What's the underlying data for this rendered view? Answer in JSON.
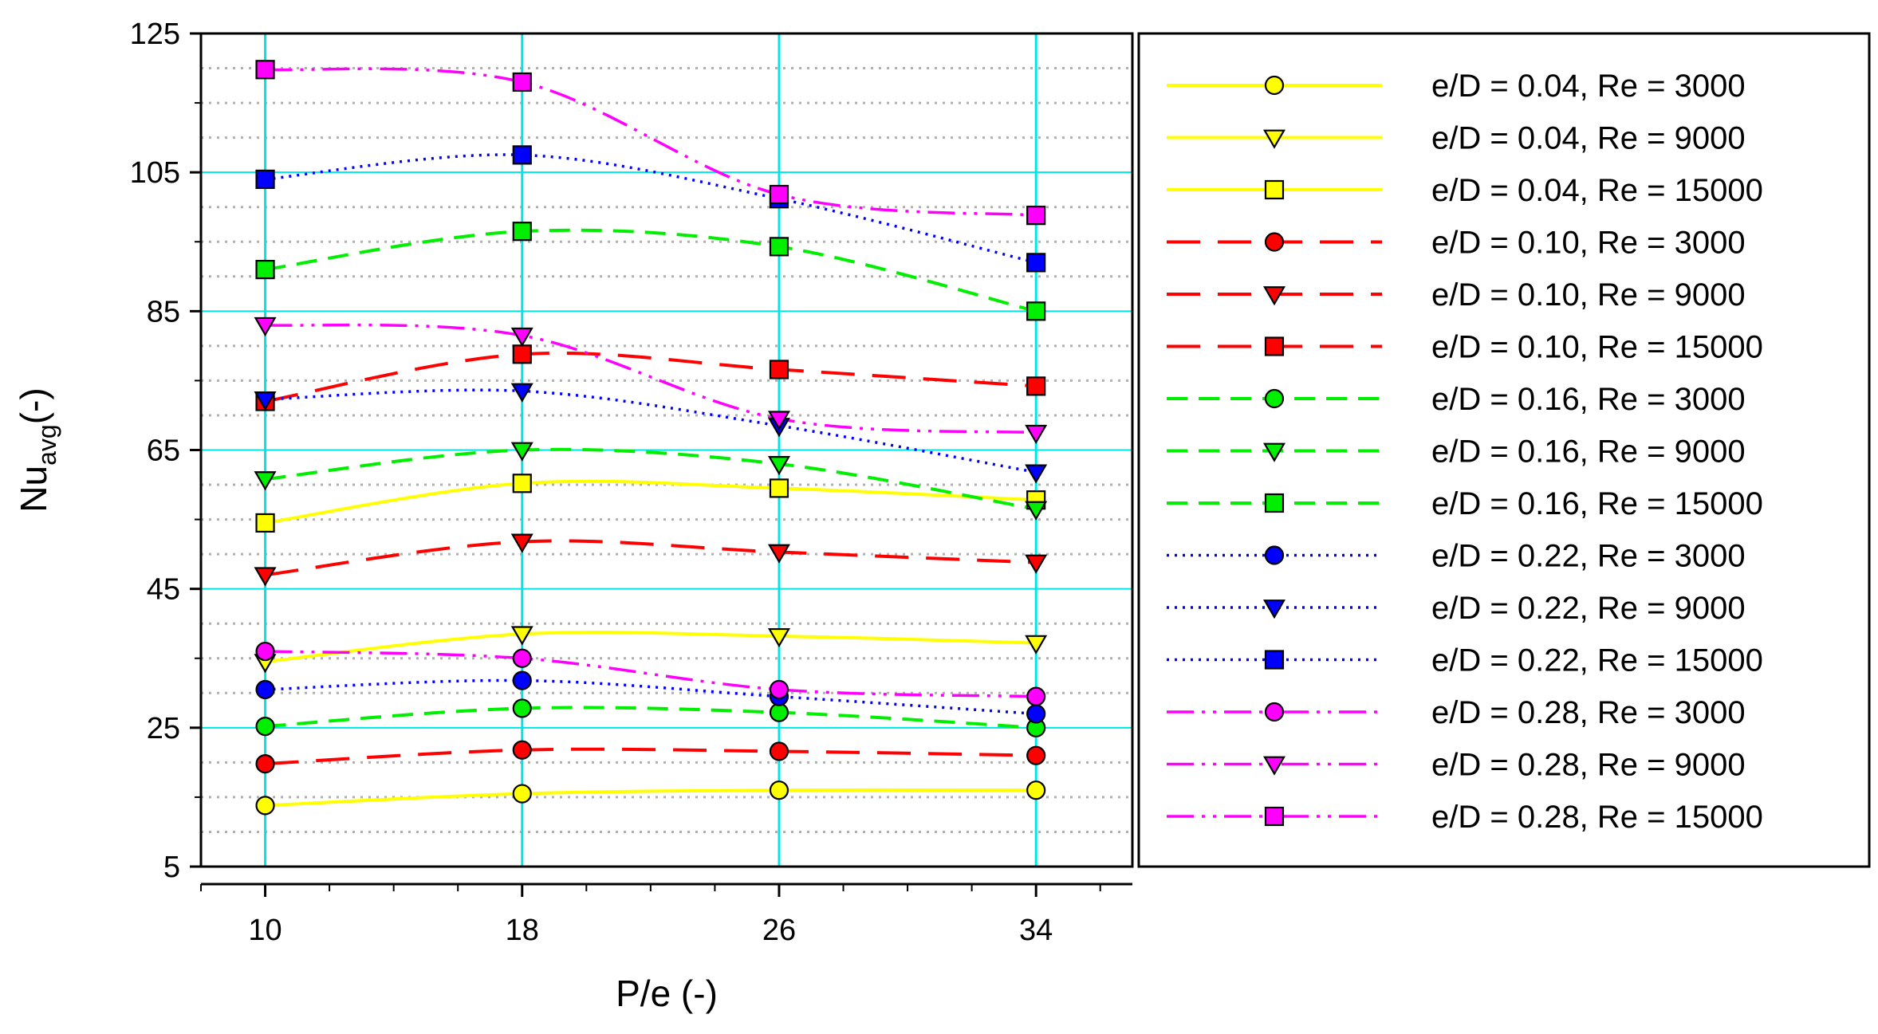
{
  "chart_data": {
    "type": "line",
    "title": "",
    "xlabel": "P/e (-)",
    "ylabel_main": "Nu",
    "ylabel_sub": "avg",
    "ylabel_suffix": "(-)",
    "x": [
      10,
      18,
      26,
      34
    ],
    "xticks": [
      "10",
      "18",
      "26",
      "34"
    ],
    "xlim": [
      8,
      37
    ],
    "yticks": [
      "5",
      "25",
      "45",
      "65",
      "85",
      "105",
      "125"
    ],
    "ylim": [
      5,
      125
    ],
    "grid": true,
    "legend_position": "right",
    "colors": {
      "yellow": "#ffff00",
      "red": "#ff0000",
      "green": "#00ee00",
      "blue": "#0000ff",
      "magenta": "#ff00ff",
      "grid_major": "#00e5e5",
      "grid_minor": "#b0b0b0"
    },
    "series": [
      {
        "name": "e/D = 0.04, Re = 3000",
        "values": [
          13.8,
          15.5,
          16.0,
          16.0
        ],
        "color": "yellow",
        "line": "solid",
        "marker": "circle"
      },
      {
        "name": "e/D = 0.04, Re = 9000",
        "values": [
          34.5,
          38.5,
          38.2,
          37.2
        ],
        "color": "yellow",
        "line": "solid",
        "marker": "triangle"
      },
      {
        "name": "e/D = 0.04, Re = 15000",
        "values": [
          54.5,
          60.2,
          59.5,
          57.8
        ],
        "color": "yellow",
        "line": "solid",
        "marker": "square"
      },
      {
        "name": "e/D = 0.10, Re = 3000",
        "values": [
          19.8,
          21.8,
          21.6,
          21.0
        ],
        "color": "red",
        "line": "dash",
        "marker": "circle"
      },
      {
        "name": "e/D = 0.10, Re = 9000",
        "values": [
          47.0,
          51.8,
          50.3,
          48.8
        ],
        "color": "red",
        "line": "dash",
        "marker": "triangle"
      },
      {
        "name": "e/D = 0.10, Re = 15000",
        "values": [
          72.0,
          78.8,
          76.6,
          74.2
        ],
        "color": "red",
        "line": "dash",
        "marker": "square"
      },
      {
        "name": "e/D = 0.16, Re = 3000",
        "values": [
          25.2,
          27.8,
          27.2,
          25.0
        ],
        "color": "green",
        "line": "dash-short",
        "marker": "circle"
      },
      {
        "name": "e/D = 0.16, Re = 9000",
        "values": [
          60.8,
          65.0,
          63.0,
          56.5
        ],
        "color": "green",
        "line": "dash-short",
        "marker": "triangle"
      },
      {
        "name": "e/D = 0.16, Re = 15000",
        "values": [
          91.0,
          96.5,
          94.3,
          85.0
        ],
        "color": "green",
        "line": "dash-short",
        "marker": "square"
      },
      {
        "name": "e/D = 0.22, Re = 3000",
        "values": [
          30.5,
          31.8,
          29.5,
          27.0
        ],
        "color": "blue",
        "line": "dot",
        "marker": "circle"
      },
      {
        "name": "e/D = 0.22, Re = 9000",
        "values": [
          72.3,
          73.5,
          68.5,
          61.8
        ],
        "color": "blue",
        "line": "dot",
        "marker": "triangle"
      },
      {
        "name": "e/D = 0.22, Re = 15000",
        "values": [
          104.0,
          107.5,
          101.2,
          92.0
        ],
        "color": "blue",
        "line": "dot",
        "marker": "square"
      },
      {
        "name": "e/D = 0.28, Re = 3000",
        "values": [
          36.0,
          35.0,
          30.5,
          29.5
        ],
        "color": "magenta",
        "line": "dashdotdot",
        "marker": "circle"
      },
      {
        "name": "e/D = 0.28, Re = 9000",
        "values": [
          83.0,
          81.5,
          69.5,
          67.5
        ],
        "color": "magenta",
        "line": "dashdotdot",
        "marker": "triangle"
      },
      {
        "name": "e/D = 0.28, Re = 15000",
        "values": [
          119.8,
          118.0,
          101.8,
          98.8
        ],
        "color": "magenta",
        "line": "dashdotdot",
        "marker": "square"
      }
    ]
  }
}
